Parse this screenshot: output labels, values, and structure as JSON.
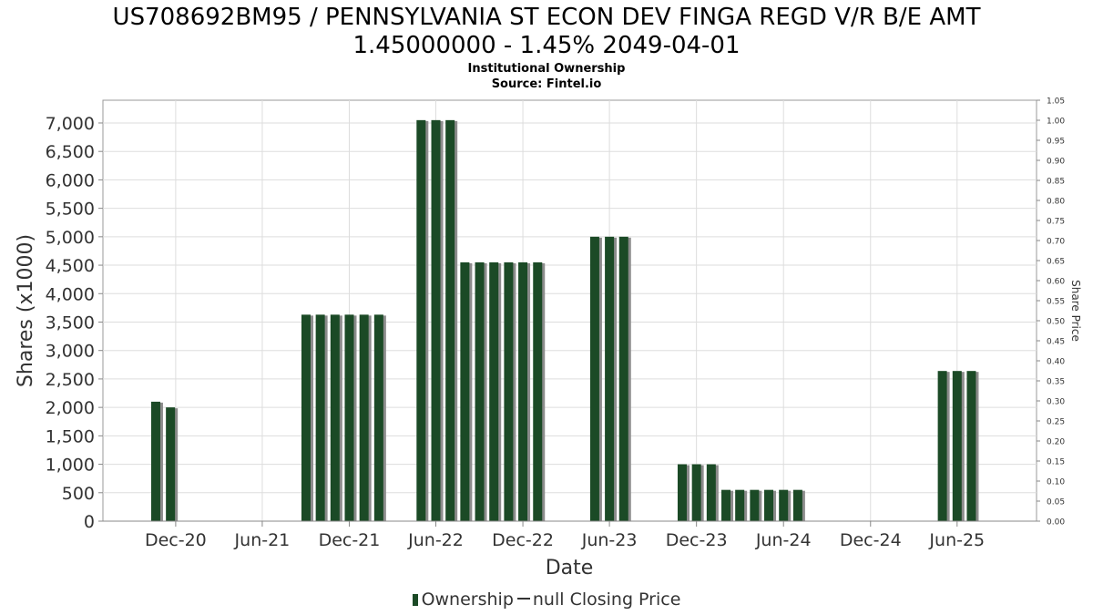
{
  "chart_data": {
    "type": "bar",
    "title_line1": "US708692BM95 / PENNSYLVANIA ST ECON DEV FINGA REGD V/R B/E AMT",
    "title_line2": "1.45000000 - 1.45% 2049-04-01",
    "subtitle": "Institutional Ownership",
    "source": "Source: Fintel.io",
    "xlabel": "Date",
    "ylabel": "Shares (x1000)",
    "y2label": "Share Price",
    "ylim": [
      0,
      7400
    ],
    "y_ticks": [
      "0",
      "500",
      "1,000",
      "1,500",
      "2,000",
      "2,500",
      "3,000",
      "3,500",
      "4,000",
      "4,500",
      "5,000",
      "5,500",
      "6,000",
      "6,500",
      "7,000"
    ],
    "y_tick_values": [
      0,
      500,
      1000,
      1500,
      2000,
      2500,
      3000,
      3500,
      4000,
      4500,
      5000,
      5500,
      6000,
      6500,
      7000
    ],
    "y2lim": [
      0,
      1.05
    ],
    "y2_ticks": [
      "0.00",
      "0.05",
      "0.10",
      "0.15",
      "0.20",
      "0.25",
      "0.30",
      "0.35",
      "0.40",
      "0.45",
      "0.50",
      "0.55",
      "0.60",
      "0.65",
      "0.70",
      "0.75",
      "0.80",
      "0.85",
      "0.90",
      "0.95",
      "1.00",
      "1.05"
    ],
    "xlim": [
      "2020-07-01",
      "2025-11-15"
    ],
    "x_ticks": [
      {
        "label": "Dec-20",
        "date": "2020-12-01"
      },
      {
        "label": "Jun-21",
        "date": "2021-06-01"
      },
      {
        "label": "Dec-21",
        "date": "2021-12-01"
      },
      {
        "label": "Jun-22",
        "date": "2022-06-01"
      },
      {
        "label": "Dec-22",
        "date": "2022-12-01"
      },
      {
        "label": "Jun-23",
        "date": "2023-06-01"
      },
      {
        "label": "Dec-23",
        "date": "2023-12-01"
      },
      {
        "label": "Jun-24",
        "date": "2024-06-01"
      },
      {
        "label": "Dec-24",
        "date": "2024-12-01"
      },
      {
        "label": "Jun-25",
        "date": "2025-06-01"
      }
    ],
    "grid": true,
    "legend_position": "bottom",
    "series": [
      {
        "name": "Ownership",
        "color": "#1b4a26",
        "points": [
          {
            "date": "2020-10-20",
            "value": 2100
          },
          {
            "date": "2020-11-20",
            "value": 2000
          },
          {
            "date": "2021-09-01",
            "value": 3630
          },
          {
            "date": "2021-10-01",
            "value": 3630
          },
          {
            "date": "2021-11-01",
            "value": 3630
          },
          {
            "date": "2021-12-01",
            "value": 3630
          },
          {
            "date": "2022-01-01",
            "value": 3630
          },
          {
            "date": "2022-02-01",
            "value": 3630
          },
          {
            "date": "2022-05-01",
            "value": 7050
          },
          {
            "date": "2022-06-01",
            "value": 7050
          },
          {
            "date": "2022-07-01",
            "value": 7050
          },
          {
            "date": "2022-08-01",
            "value": 4550
          },
          {
            "date": "2022-09-01",
            "value": 4550
          },
          {
            "date": "2022-10-01",
            "value": 4550
          },
          {
            "date": "2022-11-01",
            "value": 4550
          },
          {
            "date": "2022-12-01",
            "value": 4550
          },
          {
            "date": "2023-01-01",
            "value": 4550
          },
          {
            "date": "2023-05-01",
            "value": 5000
          },
          {
            "date": "2023-06-01",
            "value": 5000
          },
          {
            "date": "2023-07-01",
            "value": 5000
          },
          {
            "date": "2023-11-01",
            "value": 1000
          },
          {
            "date": "2023-12-01",
            "value": 1000
          },
          {
            "date": "2024-01-01",
            "value": 1000
          },
          {
            "date": "2024-02-01",
            "value": 550
          },
          {
            "date": "2024-03-01",
            "value": 550
          },
          {
            "date": "2024-04-01",
            "value": 550
          },
          {
            "date": "2024-05-01",
            "value": 550
          },
          {
            "date": "2024-06-01",
            "value": 550
          },
          {
            "date": "2024-07-01",
            "value": 550
          },
          {
            "date": "2025-05-01",
            "value": 2640
          },
          {
            "date": "2025-06-01",
            "value": 2640
          },
          {
            "date": "2025-07-01",
            "value": 2640
          }
        ]
      }
    ],
    "legend": [
      {
        "label": "Ownership",
        "kind": "bar"
      },
      {
        "label": "null Closing Price",
        "kind": "line"
      }
    ]
  }
}
